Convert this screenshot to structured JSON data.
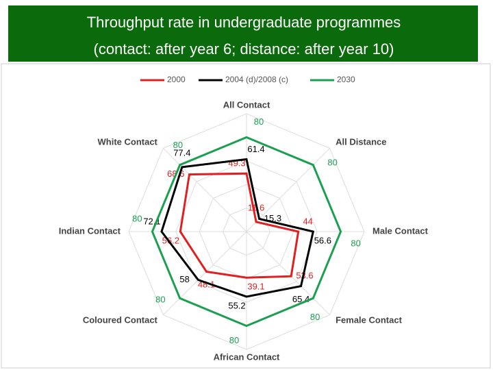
{
  "chart_data": {
    "type": "radar",
    "title": [
      "Throughput rate in undergraduate programmes",
      "(contact: after year 6; distance: after year 10)"
    ],
    "categories": [
      "All Contact",
      "All Distance",
      "Male Contact",
      "Female Contact",
      "African Contact",
      "Coloured Contact",
      "Indian Contact",
      "White Contact"
    ],
    "rlim": [
      0,
      100
    ],
    "series": [
      {
        "name": "2000",
        "color": "#e02020",
        "values": [
          49.3,
          11.6,
          44,
          53.6,
          39.1,
          48.1,
          56.2,
          68.6
        ]
      },
      {
        "name": "2004 (d)/2008 (c)",
        "color": "#000000",
        "values": [
          61.4,
          15.3,
          56.6,
          65.4,
          55.2,
          58,
          72.1,
          77.4
        ]
      },
      {
        "name": "2030",
        "color": "#1aa050",
        "values": [
          80,
          80,
          80,
          80,
          80,
          80,
          80,
          80
        ]
      }
    ],
    "legend": "top"
  }
}
